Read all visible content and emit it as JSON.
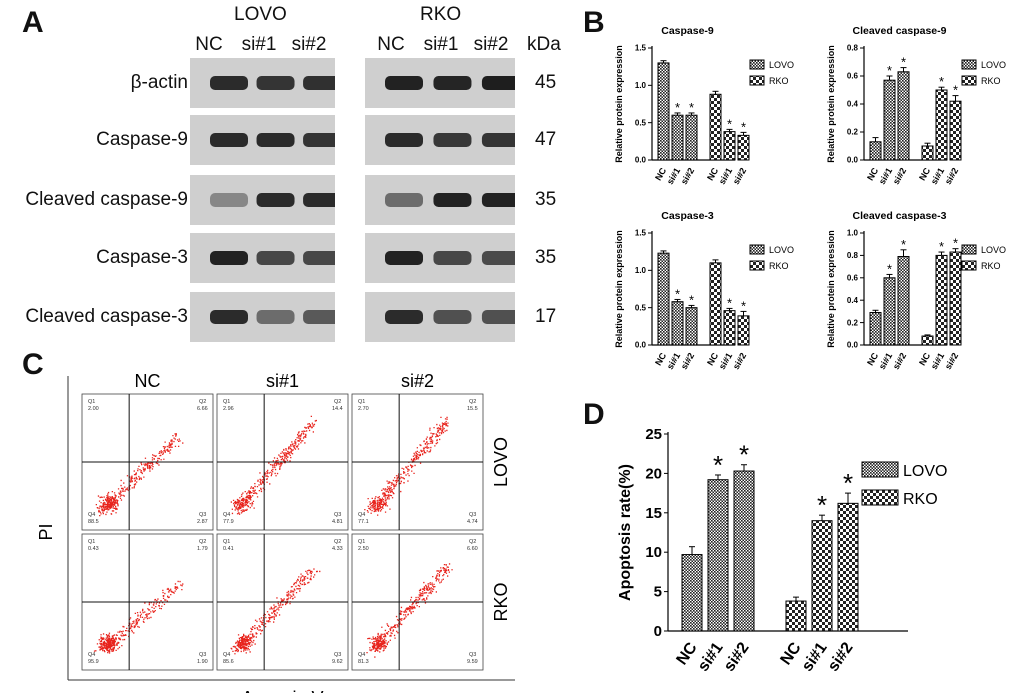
{
  "panelA": {
    "letter": "A",
    "groups": [
      "LOVO",
      "RKO"
    ],
    "lanes": [
      "NC",
      "si#1",
      "si#2"
    ],
    "kda_label": "kDa",
    "rows": [
      {
        "label": "β-actin",
        "kda": "45",
        "intensity": {
          "LOVO": [
            0.85,
            0.8,
            0.82
          ],
          "RKO": [
            0.9,
            0.88,
            0.92
          ]
        }
      },
      {
        "label": "Caspase-9",
        "kda": "47",
        "intensity": {
          "LOVO": [
            0.85,
            0.85,
            0.8
          ],
          "RKO": [
            0.85,
            0.78,
            0.8
          ]
        }
      },
      {
        "label": "Cleaved caspase-9",
        "kda": "35",
        "intensity": {
          "LOVO": [
            0.35,
            0.85,
            0.85
          ],
          "RKO": [
            0.5,
            0.9,
            0.9
          ]
        }
      },
      {
        "label": "Caspase-3",
        "kda": "35",
        "intensity": {
          "LOVO": [
            0.9,
            0.7,
            0.7
          ],
          "RKO": [
            0.9,
            0.7,
            0.68
          ]
        }
      },
      {
        "label": "Cleaved caspase-3",
        "kda": "17",
        "intensity": {
          "LOVO": [
            0.85,
            0.5,
            0.6
          ],
          "RKO": [
            0.85,
            0.65,
            0.65
          ]
        }
      }
    ]
  },
  "panelB": {
    "letter": "B"
  },
  "panelC": {
    "letter": "C",
    "columns": [
      "NC",
      "si#1",
      "si#2"
    ],
    "rows": [
      "LOVO",
      "RKO"
    ],
    "xlabel": "Annexin V",
    "ylabel": "PI",
    "quadrants": [
      [
        {
          "q1": "2.00",
          "q2": "6.66",
          "q3": "2.87",
          "q4": "88.5"
        },
        {
          "q1": "2.96",
          "q2": "14.4",
          "q3": "4.81",
          "q4": "77.9"
        },
        {
          "q1": "2.70",
          "q2": "15.5",
          "q3": "4.74",
          "q4": "77.1"
        }
      ],
      [
        {
          "q1": "0.43",
          "q2": "1.79",
          "q3": "1.90",
          "q4": "95.9"
        },
        {
          "q1": "0.41",
          "q2": "4.33",
          "q3": "9.62",
          "q4": "85.6"
        },
        {
          "q1": "2.50",
          "q2": "6.60",
          "q3": "9.59",
          "q4": "81.3"
        }
      ]
    ]
  },
  "panelD": {
    "letter": "D"
  },
  "chart_data": [
    {
      "type": "bar",
      "title": "Caspase-9",
      "ylabel": "Relative protein expression",
      "categories": [
        "NC",
        "si#1",
        "si#2"
      ],
      "series": [
        {
          "name": "LOVO",
          "values": [
            1.3,
            0.6,
            0.6
          ],
          "errors": [
            0.03,
            0.03,
            0.03
          ]
        },
        {
          "name": "RKO",
          "values": [
            0.88,
            0.38,
            0.33
          ],
          "errors": [
            0.04,
            0.03,
            0.04
          ]
        }
      ],
      "ylim": [
        0,
        1.5
      ],
      "yticks": [
        "0.0",
        "0.5",
        "1.0",
        "1.5"
      ],
      "stars": [
        false,
        true,
        true
      ]
    },
    {
      "type": "bar",
      "title": "Cleaved caspase-9",
      "ylabel": "Relative protein expression",
      "categories": [
        "NC",
        "si#1",
        "si#2"
      ],
      "series": [
        {
          "name": "LOVO",
          "values": [
            0.13,
            0.57,
            0.63
          ],
          "errors": [
            0.03,
            0.03,
            0.03
          ]
        },
        {
          "name": "RKO",
          "values": [
            0.1,
            0.5,
            0.42
          ],
          "errors": [
            0.02,
            0.02,
            0.04
          ]
        }
      ],
      "ylim": [
        0,
        0.8
      ],
      "yticks": [
        "0.0",
        "0.2",
        "0.4",
        "0.6",
        "0.8"
      ],
      "stars": [
        false,
        true,
        true
      ]
    },
    {
      "type": "bar",
      "title": "Caspase-3",
      "ylabel": "Relative protein expression",
      "categories": [
        "NC",
        "si#1",
        "si#2"
      ],
      "series": [
        {
          "name": "LOVO",
          "values": [
            1.23,
            0.58,
            0.5
          ],
          "errors": [
            0.03,
            0.03,
            0.03
          ]
        },
        {
          "name": "RKO",
          "values": [
            1.1,
            0.46,
            0.39
          ],
          "errors": [
            0.04,
            0.03,
            0.06
          ]
        }
      ],
      "ylim": [
        0,
        1.5
      ],
      "yticks": [
        "0.0",
        "0.5",
        "1.0",
        "1.5"
      ],
      "stars": [
        false,
        true,
        true
      ]
    },
    {
      "type": "bar",
      "title": "Cleaved caspase-3",
      "ylabel": "Relative protein expression",
      "categories": [
        "NC",
        "si#1",
        "si#2"
      ],
      "series": [
        {
          "name": "LOVO",
          "values": [
            0.29,
            0.6,
            0.79
          ],
          "errors": [
            0.02,
            0.03,
            0.06
          ]
        },
        {
          "name": "RKO",
          "values": [
            0.08,
            0.8,
            0.83
          ],
          "errors": [
            0.01,
            0.03,
            0.03
          ]
        }
      ],
      "ylim": [
        0,
        1.0
      ],
      "yticks": [
        "0.0",
        "0.2",
        "0.4",
        "0.6",
        "0.8",
        "1.0"
      ],
      "stars": [
        false,
        true,
        true
      ]
    },
    {
      "type": "bar",
      "title": "",
      "ylabel": "Apoptosis rate(%)",
      "categories": [
        "NC",
        "si#1",
        "si#2"
      ],
      "series": [
        {
          "name": "LOVO",
          "values": [
            9.7,
            19.2,
            20.3
          ],
          "errors": [
            1.0,
            0.6,
            0.8
          ]
        },
        {
          "name": "RKO",
          "values": [
            3.8,
            14.0,
            16.2
          ],
          "errors": [
            0.5,
            0.7,
            1.3
          ]
        }
      ],
      "ylim": [
        0,
        25
      ],
      "yticks": [
        "0",
        "5",
        "10",
        "15",
        "20",
        "25"
      ],
      "stars": [
        false,
        true,
        true
      ]
    }
  ]
}
